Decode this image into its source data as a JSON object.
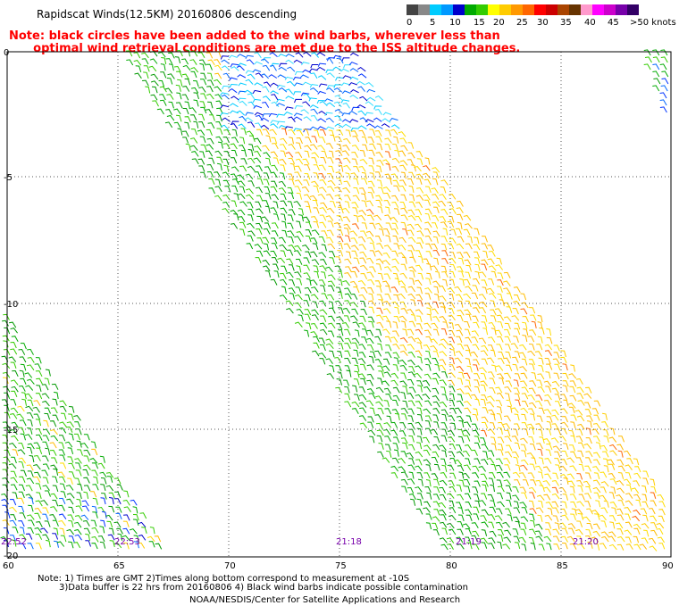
{
  "title": "Rapidscat Winds(12.5KM) 20160806 descending",
  "note_line1": "Note: black circles have been added to the wind barbs, wherever less than",
  "note_line2": "      optimal wind retrieval conditions are met due to the ISS altitude changes.",
  "colorbar": {
    "ticks": [
      "0",
      "5",
      "10",
      "15",
      "20",
      "25",
      "30",
      "35",
      "40",
      "45",
      ">50 knots"
    ],
    "colors": [
      "#444444",
      "#888888",
      "#00ccff",
      "#0099ff",
      "#0000cc",
      "#00aa00",
      "#33cc00",
      "#ffff00",
      "#ffcc00",
      "#ff9900",
      "#ff6600",
      "#ff0000",
      "#cc0000",
      "#aa4400",
      "#663300",
      "#ff99cc",
      "#ff00ff",
      "#cc00cc",
      "#7700aa",
      "#330066"
    ]
  },
  "map": {
    "lon_labels": [
      "60",
      "65",
      "70",
      "75",
      "80",
      "85",
      "90"
    ],
    "lat_labels": [
      "0",
      "-5",
      "-10",
      "-15",
      "-20"
    ],
    "time_labels": [
      "22:52",
      "22:53",
      "21:18",
      "21:19",
      "21:20"
    ]
  },
  "footer": {
    "line1": "Note: 1) Times are GMT 2)Times along bottom correspond to measurement at -10S",
    "line2": "3)Data buffer is 22 hrs from 20160806 4) Black wind barbs indicate possible contamination",
    "line3": "NOAA/NESDIS/Center for Satellite Applications and Research"
  }
}
